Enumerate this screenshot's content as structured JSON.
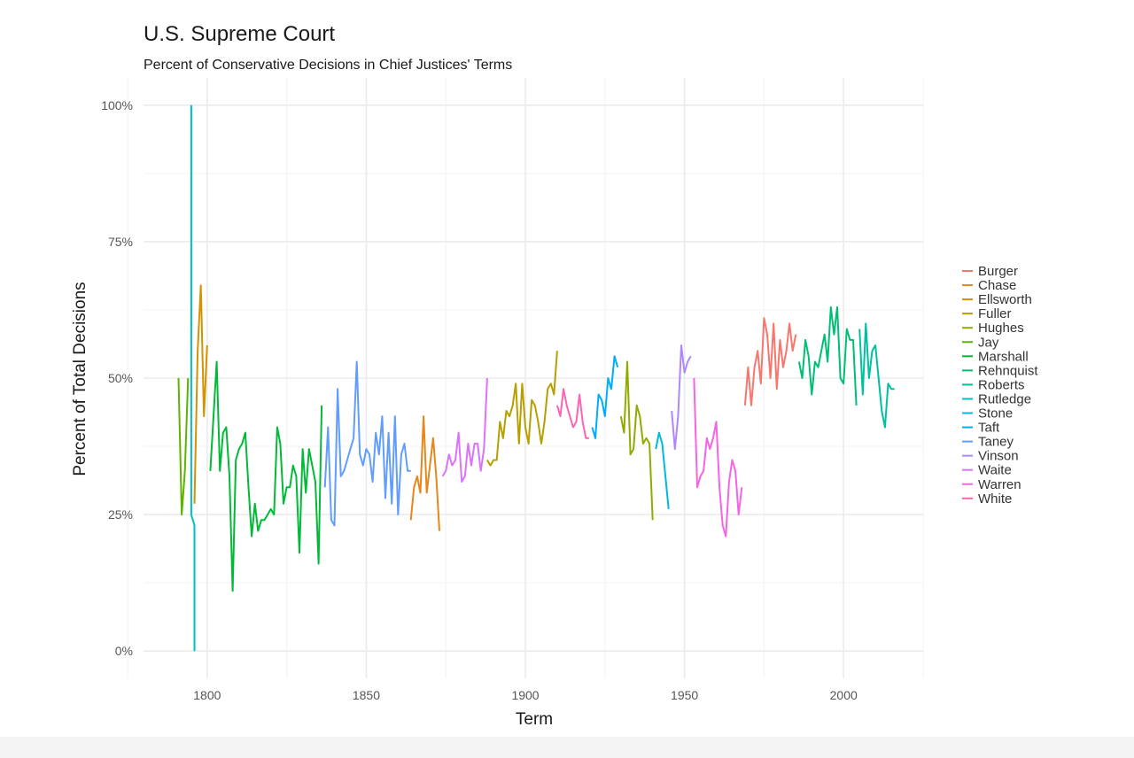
{
  "chart_data": {
    "type": "line",
    "title": "U.S. Supreme Court",
    "subtitle": "Percent of Conservative Decisions in Chief Justices' Terms",
    "xlabel": "Term",
    "ylabel": "Percent of Total Decisions",
    "xlim": [
      1780,
      2025
    ],
    "ylim": [
      -0.05,
      1.05
    ],
    "x_ticks": [
      1800,
      1850,
      1900,
      1950,
      2000
    ],
    "x_tick_labels": [
      "1800",
      "1850",
      "1900",
      "1950",
      "2000"
    ],
    "y_ticks": [
      0,
      0.25,
      0.5,
      0.75,
      1.0
    ],
    "y_tick_labels": [
      "0%",
      "25%",
      "50%",
      "75%",
      "100%"
    ],
    "grid": true,
    "legend": "right",
    "series": [
      {
        "name": "Burger",
        "color": "#F8766D",
        "x": [
          1969,
          1970,
          1971,
          1972,
          1973,
          1974,
          1975,
          1976,
          1977,
          1978,
          1979,
          1980,
          1981,
          1982,
          1983,
          1984,
          1985
        ],
        "y": [
          0.45,
          0.52,
          0.45,
          0.52,
          0.55,
          0.49,
          0.61,
          0.58,
          0.5,
          0.6,
          0.48,
          0.57,
          0.52,
          0.55,
          0.6,
          0.55,
          0.58
        ]
      },
      {
        "name": "Chase",
        "color": "#E7861B",
        "x": [
          1864,
          1865,
          1866,
          1867,
          1868,
          1869,
          1870,
          1871,
          1872,
          1873
        ],
        "y": [
          0.24,
          0.3,
          0.32,
          0.29,
          0.43,
          0.29,
          0.34,
          0.39,
          0.32,
          0.22
        ]
      },
      {
        "name": "Ellsworth",
        "color": "#D39200",
        "x": [
          1796,
          1797,
          1798,
          1799,
          1800
        ],
        "y": [
          0.27,
          0.55,
          0.67,
          0.43,
          0.56
        ]
      },
      {
        "name": "Fuller",
        "color": "#B79F00",
        "x": [
          1888,
          1889,
          1890,
          1891,
          1892,
          1893,
          1894,
          1895,
          1896,
          1897,
          1898,
          1899,
          1900,
          1901,
          1902,
          1903,
          1904,
          1905,
          1906,
          1907,
          1908,
          1909,
          1910
        ],
        "y": [
          0.35,
          0.34,
          0.35,
          0.35,
          0.42,
          0.39,
          0.44,
          0.43,
          0.45,
          0.49,
          0.38,
          0.49,
          0.41,
          0.38,
          0.46,
          0.45,
          0.42,
          0.38,
          0.42,
          0.48,
          0.49,
          0.47,
          0.55
        ]
      },
      {
        "name": "Hughes",
        "color": "#93AA00",
        "x": [
          1930,
          1931,
          1932,
          1933,
          1934,
          1935,
          1936,
          1937,
          1938,
          1939,
          1940
        ],
        "y": [
          0.43,
          0.4,
          0.53,
          0.36,
          0.37,
          0.45,
          0.43,
          0.38,
          0.39,
          0.38,
          0.24
        ]
      },
      {
        "name": "Jay",
        "color": "#5EB300",
        "x": [
          1791,
          1792,
          1793,
          1794
        ],
        "y": [
          0.5,
          0.25,
          0.33,
          0.5
        ]
      },
      {
        "name": "Marshall",
        "color": "#00BA38",
        "x": [
          1801,
          1802,
          1803,
          1804,
          1805,
          1806,
          1807,
          1808,
          1809,
          1810,
          1811,
          1812,
          1813,
          1814,
          1815,
          1816,
          1817,
          1818,
          1819,
          1820,
          1821,
          1822,
          1823,
          1824,
          1825,
          1826,
          1827,
          1828,
          1829,
          1830,
          1831,
          1832,
          1833,
          1834,
          1835,
          1836
        ],
        "y": [
          0.33,
          0.43,
          0.53,
          0.33,
          0.4,
          0.41,
          0.32,
          0.11,
          0.35,
          0.37,
          0.38,
          0.4,
          0.3,
          0.21,
          0.27,
          0.22,
          0.24,
          0.24,
          0.25,
          0.26,
          0.25,
          0.41,
          0.38,
          0.27,
          0.3,
          0.3,
          0.34,
          0.32,
          0.18,
          0.37,
          0.29,
          0.37,
          0.34,
          0.31,
          0.16,
          0.45
        ]
      },
      {
        "name": "Rehnquist",
        "color": "#00BF74",
        "x": [
          1986,
          1987,
          1988,
          1989,
          1990,
          1991,
          1992,
          1993,
          1994,
          1995,
          1996,
          1997,
          1998,
          1999,
          2000,
          2001,
          2002,
          2003,
          2004
        ],
        "y": [
          0.53,
          0.5,
          0.57,
          0.54,
          0.47,
          0.53,
          0.52,
          0.55,
          0.58,
          0.53,
          0.63,
          0.58,
          0.63,
          0.5,
          0.49,
          0.59,
          0.57,
          0.57,
          0.45
        ]
      },
      {
        "name": "Roberts",
        "color": "#00C19F",
        "x": [
          2005,
          2006,
          2007,
          2008,
          2009,
          2010,
          2011,
          2012,
          2013,
          2014,
          2015,
          2016
        ],
        "y": [
          0.59,
          0.47,
          0.6,
          0.5,
          0.55,
          0.56,
          0.5,
          0.44,
          0.41,
          0.49,
          0.48,
          0.48
        ]
      },
      {
        "name": "Rutledge",
        "color": "#00BFC4",
        "x": [
          1795,
          1795,
          1796,
          1796
        ],
        "y": [
          1.0,
          0.25,
          0.23,
          0.0
        ]
      },
      {
        "name": "Stone",
        "color": "#00B9E3",
        "x": [
          1941,
          1942,
          1943,
          1944,
          1945
        ],
        "y": [
          0.37,
          0.4,
          0.38,
          0.32,
          0.26
        ]
      },
      {
        "name": "Taft",
        "color": "#00ADFA",
        "x": [
          1921,
          1922,
          1923,
          1924,
          1925,
          1926,
          1927,
          1928,
          1929
        ],
        "y": [
          0.41,
          0.39,
          0.47,
          0.46,
          0.43,
          0.5,
          0.48,
          0.54,
          0.52
        ]
      },
      {
        "name": "Taney",
        "color": "#619CFF",
        "x": [
          1837,
          1838,
          1839,
          1840,
          1841,
          1842,
          1843,
          1844,
          1845,
          1846,
          1847,
          1848,
          1849,
          1850,
          1851,
          1852,
          1853,
          1854,
          1855,
          1856,
          1857,
          1858,
          1859,
          1860,
          1861,
          1862,
          1863,
          1864
        ],
        "y": [
          0.3,
          0.41,
          0.24,
          0.23,
          0.48,
          0.32,
          0.33,
          0.35,
          0.37,
          0.39,
          0.53,
          0.36,
          0.34,
          0.37,
          0.36,
          0.31,
          0.4,
          0.36,
          0.43,
          0.28,
          0.4,
          0.27,
          0.43,
          0.25,
          0.36,
          0.38,
          0.33,
          0.33
        ]
      },
      {
        "name": "Vinson",
        "color": "#AE87FF",
        "x": [
          1946,
          1947,
          1948,
          1949,
          1950,
          1951,
          1952
        ],
        "y": [
          0.44,
          0.37,
          0.43,
          0.56,
          0.51,
          0.53,
          0.54
        ]
      },
      {
        "name": "Waite",
        "color": "#DB72FB",
        "x": [
          1874,
          1875,
          1876,
          1877,
          1878,
          1879,
          1880,
          1881,
          1882,
          1883,
          1884,
          1885,
          1886,
          1887,
          1888
        ],
        "y": [
          0.32,
          0.33,
          0.36,
          0.34,
          0.35,
          0.4,
          0.31,
          0.32,
          0.38,
          0.34,
          0.38,
          0.38,
          0.33,
          0.37,
          0.5
        ]
      },
      {
        "name": "Warren",
        "color": "#F564E3",
        "x": [
          1953,
          1954,
          1955,
          1956,
          1957,
          1958,
          1959,
          1960,
          1961,
          1962,
          1963,
          1964,
          1965,
          1966,
          1967,
          1968
        ],
        "y": [
          0.5,
          0.3,
          0.32,
          0.33,
          0.39,
          0.37,
          0.39,
          0.42,
          0.3,
          0.23,
          0.21,
          0.31,
          0.35,
          0.33,
          0.25,
          0.3
        ]
      },
      {
        "name": "White",
        "color": "#FF64B0",
        "x": [
          1910,
          1911,
          1912,
          1913,
          1914,
          1915,
          1916,
          1917,
          1918,
          1919,
          1920
        ],
        "y": [
          0.45,
          0.43,
          0.48,
          0.45,
          0.43,
          0.41,
          0.42,
          0.47,
          0.42,
          0.39,
          0.39
        ]
      }
    ]
  }
}
